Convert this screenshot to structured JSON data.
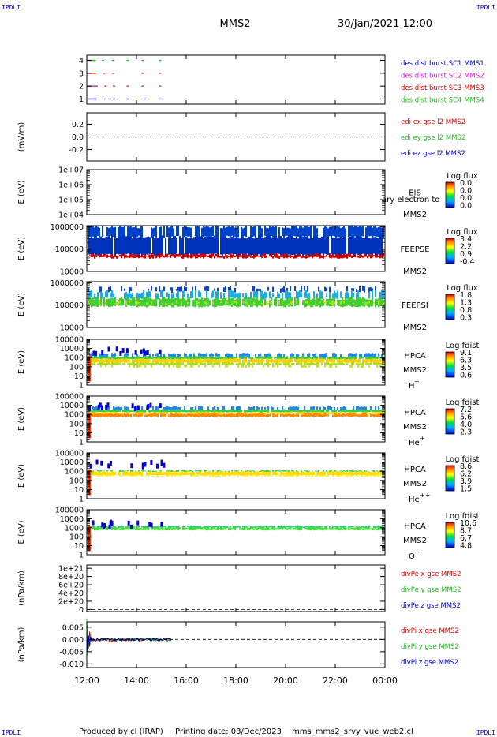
{
  "corner_label": "IPDLI",
  "header": {
    "spacecraft": "MMS2",
    "date": "30/Jan/2021 12:00"
  },
  "footer": {
    "producer": "Produced by cl (IRAP)",
    "printing": "Printing date: 03/Dec/2023",
    "file": "mms_mms2_srvy_vue_web2.cl"
  },
  "time_axis": {
    "ticks": [
      "12:00",
      "14:00",
      "16:00",
      "18:00",
      "20:00",
      "22:00",
      "00:00"
    ],
    "range_hours": [
      12,
      24
    ]
  },
  "colors": {
    "red": "#dd0000",
    "green": "#22bb22",
    "blue": "#0000bb",
    "magenta": "#cc22cc"
  },
  "chart_data": [
    {
      "type": "line",
      "panel": "des_dist",
      "yticks": [
        "1",
        "2",
        "3",
        "4"
      ],
      "ylim": [
        0.6,
        4.4
      ],
      "legend": [
        {
          "label": "des dist burst SC1 MMS1",
          "color": "#0000bb"
        },
        {
          "label": "des dist burst SC2 MMS2",
          "color": "#cc22cc"
        },
        {
          "label": "des dist burst SC3 MMS3",
          "color": "#dd0000"
        },
        {
          "label": "des dist burst SC4 MMS4",
          "color": "#22bb22"
        }
      ],
      "series": [
        {
          "level": 4,
          "x_hours": [
            12.0,
            12.25,
            12.6,
            13.0,
            13.6,
            14.2,
            14.9
          ],
          "color": "#22bb22"
        },
        {
          "level": 3,
          "x_hours": [
            12.05,
            12.3,
            12.65,
            13.0,
            14.2,
            14.9
          ],
          "color": "#dd0000"
        },
        {
          "level": 2,
          "x_hours": [
            12.0,
            12.35,
            12.7,
            13.05,
            13.6,
            14.2,
            14.9
          ],
          "color": "#cc22cc"
        },
        {
          "level": 1,
          "x_hours": [
            12.05,
            12.3,
            12.7,
            13.05,
            13.6,
            14.3,
            14.9
          ],
          "color": "#0000bb"
        }
      ]
    },
    {
      "type": "line",
      "panel": "edi_e",
      "ylabel": "(mV/m)",
      "yticks": [
        "0.2",
        "0.0",
        "-0.2"
      ],
      "ylim": [
        -0.38,
        0.38
      ],
      "zero_line": true,
      "legend": [
        {
          "label": "edi ex gse l2 MMS2",
          "color": "#dd0000"
        },
        {
          "label": "edi ey gse l2 MMS2",
          "color": "#22bb22"
        },
        {
          "label": "edi ez gse l2 MMS2",
          "color": "#0000bb"
        }
      ]
    },
    {
      "type": "heatmap",
      "panel": "eis",
      "ylabel": "E (eV)",
      "yticks": [
        "1e+07",
        "1e+06",
        "1e+05",
        "1e+04"
      ],
      "log_range": [
        4,
        7
      ],
      "instrument": "EIS",
      "overlap_text": "ary electron to",
      "spacecraft": "MMS2",
      "colorbar": {
        "title": "Log flux",
        "labels": [
          "0.0",
          "0.0",
          "0.0",
          "0.0"
        ]
      }
    },
    {
      "type": "heatmap",
      "panel": "feepse",
      "ylabel": "E (eV)",
      "yticks": [
        "1000000",
        "100000",
        "10000"
      ],
      "log_range": [
        4,
        6.05
      ],
      "instrument": "FEEPSE",
      "spacecraft": "MMS2",
      "colorbar": {
        "title": "Log flux",
        "labels": [
          "3.4",
          "2.2",
          "0.9",
          "-0.4"
        ]
      },
      "bands": [
        {
          "from": 5.55,
          "to": 6.0,
          "color": "#0044cc",
          "density": 0.85
        },
        {
          "from": 4.75,
          "to": 5.55,
          "color": "#0033bb",
          "density": 0.95
        },
        {
          "from": 4.62,
          "to": 4.75,
          "color": "#cc0000",
          "density": 1.0
        }
      ]
    },
    {
      "type": "heatmap",
      "panel": "feepsi",
      "ylabel": "E (eV)",
      "yticks": [
        "1000000",
        "100000",
        "10000"
      ],
      "log_range": [
        4,
        6.05
      ],
      "instrument": "FEEPSI",
      "spacecraft": "MMS2",
      "colorbar": {
        "title": "Log flux",
        "labels": [
          "1.8",
          "1.3",
          "0.8",
          "0.3"
        ]
      },
      "bands": [
        {
          "from": 5.6,
          "to": 5.8,
          "color": "#1144cc",
          "density": 0.35
        },
        {
          "from": 5.3,
          "to": 5.6,
          "color": "#22aadd",
          "density": 0.55
        },
        {
          "from": 4.95,
          "to": 5.3,
          "color": "#44cc33",
          "density": 0.9
        },
        {
          "from": 5.05,
          "to": 5.15,
          "color": "#aadd22",
          "density": 0.4
        }
      ]
    },
    {
      "type": "heatmap",
      "panel": "hpca_h",
      "ylabel": "E (eV)",
      "yticks": [
        "100000",
        "10000",
        "1000",
        "100",
        "10",
        "1"
      ],
      "log_range": [
        0,
        5
      ],
      "instrument": "HPCA",
      "spacecraft": "MMS2",
      "species": "H",
      "charge": "+",
      "colorbar": {
        "title": "Log fdist",
        "labels": [
          "9.1",
          "6.3",
          "3.5",
          "0.6"
        ]
      },
      "bands": [
        {
          "from": 3.1,
          "to": 3.45,
          "color": "#2288ee",
          "density": 0.6
        },
        {
          "from": 2.85,
          "to": 3.1,
          "color": "#33cc44",
          "density": 0.95
        },
        {
          "from": 2.45,
          "to": 2.85,
          "color": "#ffcc00",
          "density": 0.95
        },
        {
          "from": 2.2,
          "to": 2.45,
          "color": "#aadd22",
          "density": 0.85
        },
        {
          "from": 1.9,
          "to": 2.2,
          "color": "#ccdd22",
          "density": 0.35
        }
      ]
    },
    {
      "type": "heatmap",
      "panel": "hpca_he",
      "ylabel": "E (eV)",
      "yticks": [
        "100000",
        "10000",
        "1000",
        "100",
        "10",
        "1"
      ],
      "log_range": [
        0,
        5
      ],
      "instrument": "HPCA",
      "spacecraft": "MMS2",
      "species": "He",
      "charge": "+",
      "colorbar": {
        "title": "Log fdist",
        "labels": [
          "7.2",
          "5.6",
          "4.0",
          "2.3"
        ]
      },
      "bands": [
        {
          "from": 3.5,
          "to": 3.85,
          "color": "#2288ee",
          "density": 0.55
        },
        {
          "from": 3.25,
          "to": 3.5,
          "color": "#33cc55",
          "density": 0.95
        },
        {
          "from": 3.05,
          "to": 3.25,
          "color": "#ffcc00",
          "density": 0.95
        },
        {
          "from": 2.75,
          "to": 3.05,
          "color": "#ff8800",
          "density": 0.95
        }
      ]
    },
    {
      "type": "heatmap",
      "panel": "hpca_hepp",
      "ylabel": "E (eV)",
      "yticks": [
        "100000",
        "10000",
        "1000",
        "100",
        "10",
        "1"
      ],
      "log_range": [
        0,
        5
      ],
      "instrument": "HPCA",
      "spacecraft": "MMS2",
      "species": "He",
      "charge": "++",
      "colorbar": {
        "title": "Log fdist",
        "labels": [
          "8.6",
          "6.2",
          "3.9",
          "1.5"
        ]
      },
      "bands": [
        {
          "from": 2.95,
          "to": 3.1,
          "color": "#44cc44",
          "density": 0.7
        },
        {
          "from": 2.55,
          "to": 2.95,
          "color": "#ffdd00",
          "density": 0.95
        },
        {
          "from": 2.4,
          "to": 2.55,
          "color": "#ffee44",
          "density": 0.6
        }
      ]
    },
    {
      "type": "heatmap",
      "panel": "hpca_o",
      "ylabel": "E (eV)",
      "yticks": [
        "100000",
        "10000",
        "1000",
        "100",
        "10",
        "1"
      ],
      "log_range": [
        0,
        5
      ],
      "instrument": "HPCA",
      "spacecraft": "MMS2",
      "species": "O",
      "charge": "+",
      "colorbar": {
        "title": "Log fdist",
        "labels": [
          "10.6",
          "8.7",
          "6.7",
          "4.8"
        ]
      },
      "bands": [
        {
          "from": 3.0,
          "to": 3.2,
          "color": "#33cc77",
          "density": 0.85
        },
        {
          "from": 2.75,
          "to": 3.0,
          "color": "#44dd33",
          "density": 0.95
        }
      ]
    },
    {
      "type": "line",
      "panel": "divpe",
      "ylabel": "(nPa/km)",
      "yticks": [
        "1e+21",
        "8e+20",
        "6e+20",
        "4e+20",
        "2e+20",
        "0"
      ],
      "ylim": [
        -5e+19,
        1.08e+21
      ],
      "zero_line": true,
      "legend": [
        {
          "label": "divPe x gse MMS2",
          "color": "#dd0000"
        },
        {
          "label": "divPe y gse MMS2",
          "color": "#22bb22"
        },
        {
          "label": "divPe z gse MMS2",
          "color": "#0000bb"
        }
      ]
    },
    {
      "type": "line",
      "panel": "divpi",
      "ylabel": "(nPa/km)",
      "yticks": [
        "0.005",
        "0.000",
        "-0.005",
        "-0.010"
      ],
      "ylim": [
        -0.0115,
        0.0072
      ],
      "zero_line": true,
      "legend": [
        {
          "label": "divPi x gse MMS2",
          "color": "#dd0000"
        },
        {
          "label": "divPi y gse MMS2",
          "color": "#22bb22"
        },
        {
          "label": "divPi z gse MMS2",
          "color": "#0000bb"
        }
      ],
      "x_range_hours": [
        12.0,
        15.4
      ]
    }
  ]
}
